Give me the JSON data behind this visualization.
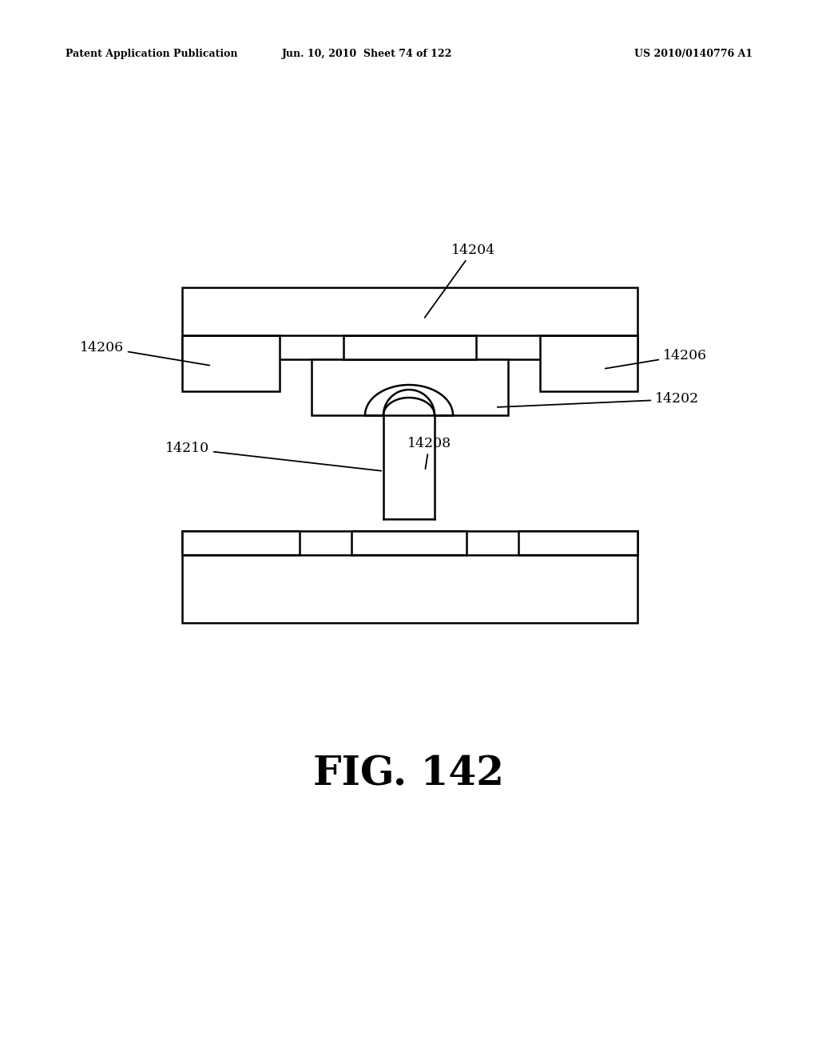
{
  "header_left": "Patent Application Publication",
  "header_mid": "Jun. 10, 2010  Sheet 74 of 122",
  "header_right": "US 2010/0140776 A1",
  "figure_label": "FIG. 142",
  "bg_color": "#ffffff",
  "line_color": "#000000",
  "line_width": 1.8
}
